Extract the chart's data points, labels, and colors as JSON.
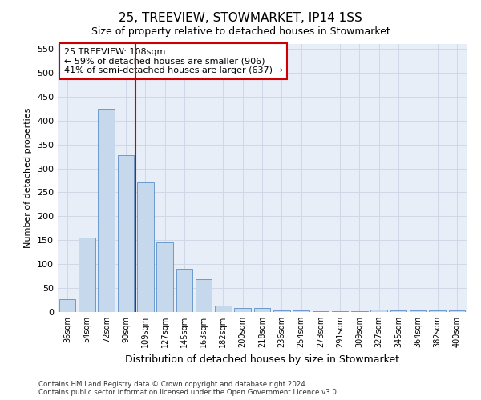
{
  "title": "25, TREEVIEW, STOWMARKET, IP14 1SS",
  "subtitle": "Size of property relative to detached houses in Stowmarket",
  "xlabel": "Distribution of detached houses by size in Stowmarket",
  "ylabel": "Number of detached properties",
  "categories": [
    "36sqm",
    "54sqm",
    "72sqm",
    "90sqm",
    "109sqm",
    "127sqm",
    "145sqm",
    "163sqm",
    "182sqm",
    "200sqm",
    "218sqm",
    "236sqm",
    "254sqm",
    "273sqm",
    "291sqm",
    "309sqm",
    "327sqm",
    "345sqm",
    "364sqm",
    "382sqm",
    "400sqm"
  ],
  "values": [
    27,
    155,
    425,
    327,
    271,
    145,
    90,
    68,
    13,
    9,
    9,
    3,
    3,
    2,
    2,
    2,
    5,
    3,
    3,
    3,
    3
  ],
  "bar_color": "#c5d8ec",
  "bar_edge_color": "#5b8fc9",
  "grid_color": "#d0d8e8",
  "background_color": "#e8eef8",
  "vline_x": 4.0,
  "vline_color": "#cc0000",
  "annotation_line1": "25 TREEVIEW: 108sqm",
  "annotation_line2": "← 59% of detached houses are smaller (906)",
  "annotation_line3": "41% of semi-detached houses are larger (637) →",
  "annotation_box_facecolor": "#ffffff",
  "annotation_box_edge": "#cc0000",
  "ylim": [
    0,
    560
  ],
  "yticks": [
    0,
    50,
    100,
    150,
    200,
    250,
    300,
    350,
    400,
    450,
    500,
    550
  ],
  "footer_line1": "Contains HM Land Registry data © Crown copyright and database right 2024.",
  "footer_line2": "Contains public sector information licensed under the Open Government Licence v3.0.",
  "title_fontsize": 11,
  "subtitle_fontsize": 9,
  "tick_fontsize": 7,
  "ylabel_fontsize": 8,
  "xlabel_fontsize": 9
}
